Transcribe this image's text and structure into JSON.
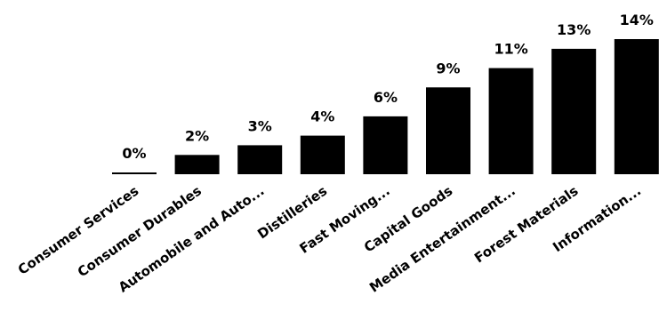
{
  "chart_data": {
    "type": "bar",
    "categories": [
      "Consumer Services",
      "Consumer Durables",
      "Automobile and Auto...",
      "Distilleries",
      "Fast Moving...",
      "Capital Goods",
      "Media Entertainment...",
      "Forest Materials",
      "Information..."
    ],
    "values": [
      0,
      2,
      3,
      4,
      6,
      9,
      11,
      13,
      14
    ],
    "data_labels": [
      "0%",
      "2%",
      "3%",
      "4%",
      "6%",
      "9%",
      "11%",
      "13%",
      "14%"
    ],
    "title": "",
    "xlabel": "",
    "ylabel": "",
    "ylim": [
      0,
      14
    ],
    "grid": false,
    "legend": "none",
    "colors": {
      "bar": "#000000",
      "text": "#000000",
      "background": "#ffffff"
    }
  }
}
